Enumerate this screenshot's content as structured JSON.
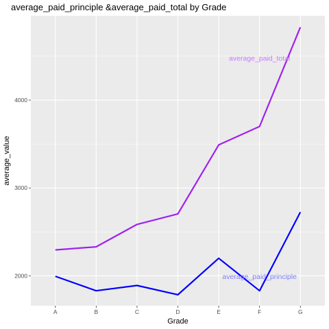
{
  "chart_data": {
    "type": "line",
    "title": "average_paid_principle &average_paid_total by Grade",
    "xlabel": "Grade",
    "ylabel": "average_value",
    "categories": [
      "A",
      "B",
      "C",
      "D",
      "E",
      "F",
      "G"
    ],
    "series": [
      {
        "name": "average_paid_total",
        "color": "#a020f0",
        "values": [
          2295,
          2330,
          2585,
          2705,
          3490,
          3700,
          4830
        ]
      },
      {
        "name": "average_paid_principle",
        "color": "#0000ff",
        "values": [
          1995,
          1830,
          1890,
          1785,
          2200,
          1830,
          2725
        ]
      }
    ],
    "annotations": [
      {
        "text": "average_paid_total",
        "color": "#c77cff",
        "x": "F",
        "y": 4480
      },
      {
        "text": "average_paid_principle",
        "color": "#7f7fff",
        "x": "F",
        "y": 1995
      }
    ],
    "yticks": [
      2000,
      3000,
      4000
    ],
    "ylim": [
      1660,
      4960
    ],
    "grid": true,
    "panel_background": "#ebebeb",
    "grid_color": "#ffffff"
  }
}
